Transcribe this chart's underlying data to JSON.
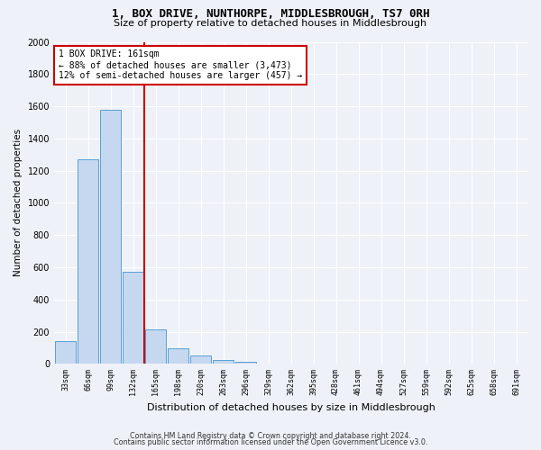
{
  "title1": "1, BOX DRIVE, NUNTHORPE, MIDDLESBROUGH, TS7 0RH",
  "title2": "Size of property relative to detached houses in Middlesbrough",
  "xlabel": "Distribution of detached houses by size in Middlesbrough",
  "ylabel": "Number of detached properties",
  "bar_labels": [
    "33sqm",
    "66sqm",
    "99sqm",
    "132sqm",
    "165sqm",
    "198sqm",
    "230sqm",
    "263sqm",
    "296sqm",
    "329sqm",
    "362sqm",
    "395sqm",
    "428sqm",
    "461sqm",
    "494sqm",
    "527sqm",
    "559sqm",
    "592sqm",
    "625sqm",
    "658sqm",
    "691sqm"
  ],
  "bar_values": [
    140,
    1270,
    1580,
    570,
    215,
    95,
    50,
    25,
    15,
    0,
    0,
    0,
    0,
    0,
    0,
    0,
    0,
    0,
    0,
    0,
    0
  ],
  "bar_color": "#c5d8f0",
  "bar_edge_color": "#5a9fd4",
  "ylim": [
    0,
    2000
  ],
  "yticks": [
    0,
    200,
    400,
    600,
    800,
    1000,
    1200,
    1400,
    1600,
    1800,
    2000
  ],
  "vline_color": "#cc0000",
  "annotation_text": "1 BOX DRIVE: 161sqm\n← 88% of detached houses are smaller (3,473)\n12% of semi-detached houses are larger (457) →",
  "annotation_box_color": "#ffffff",
  "annotation_box_edge_color": "#cc0000",
  "footnote1": "Contains HM Land Registry data © Crown copyright and database right 2024.",
  "footnote2": "Contains public sector information licensed under the Open Government Licence v3.0.",
  "bg_color": "#eef2f8",
  "plot_bg_color": "#eef2f8",
  "grid_color": "#ffffff",
  "title_fontsize": 9,
  "subtitle_fontsize": 8
}
